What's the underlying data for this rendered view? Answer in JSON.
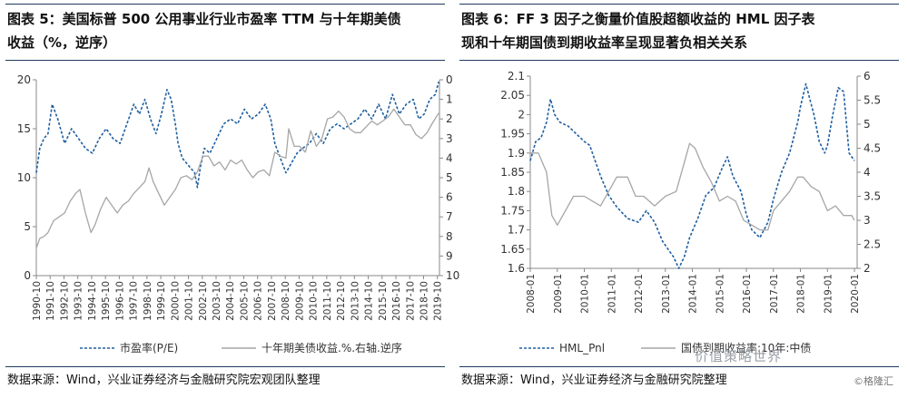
{
  "left": {
    "title_line1": "图表 5：美国标普 500 公用事业行业市盈率 TTM 与十年期美债",
    "title_line2": "收益（%，逆序）",
    "source": "数据来源：Wind，兴业证券经济与金融研究院宏观团队整理"
  },
  "right": {
    "title_line1": "图表 6：FF 3 因子之衡量价值股超额收益的 HML 因子表",
    "title_line2": "现和十年期国债到期收益率呈现显著负相关关系",
    "source": "数据来源：Wind，兴业证券经济与金融研究院整理",
    "watermark": "价值策略世界",
    "watermark2": "©格隆汇"
  },
  "colors": {
    "blue": "#1f5fa0",
    "gray": "#a6a6a6",
    "rule": "#1f3b5f"
  },
  "chart_data": [
    {
      "type": "line",
      "x": [
        "1990-10",
        "1991-10",
        "1992-10",
        "1993-10",
        "1994-10",
        "1995-10",
        "1996-10",
        "1997-10",
        "1998-10",
        "1999-10",
        "2000-10",
        "2001-10",
        "2002-10",
        "2003-10",
        "2004-10",
        "2005-10",
        "2006-10",
        "2007-10",
        "2008-10",
        "2009-10",
        "2010-10",
        "2011-10",
        "2012-10",
        "2013-10",
        "2014-10",
        "2015-10",
        "2016-10",
        "2017-10",
        "2018-10",
        "2019-10"
      ],
      "xlim": [
        1990.75,
        2019.9
      ],
      "ylim_left": [
        0,
        20
      ],
      "ylim_right": [
        0,
        10
      ],
      "yticks_left": [
        "0",
        "5",
        "10",
        "15",
        "20"
      ],
      "yticks_right": [
        "0",
        "1",
        "2",
        "3",
        "4",
        "5",
        "6",
        "7",
        "8",
        "9",
        "10"
      ],
      "right_axis_inverted": true,
      "series": [
        {
          "name": "市盈率(P/E)",
          "axis": "left",
          "style": "dashed",
          "x": [
            1990.75,
            1991.0,
            1991.3,
            1991.6,
            1991.9,
            1992.3,
            1992.8,
            1993.3,
            1993.8,
            1994.3,
            1994.8,
            1995.3,
            1995.8,
            1996.3,
            1996.8,
            1997.3,
            1997.8,
            1998.2,
            1998.6,
            1999.0,
            1999.4,
            1999.8,
            2000.2,
            2000.5,
            2000.8,
            2001.0,
            2001.3,
            2001.6,
            2001.9,
            2002.2,
            2002.4,
            2002.6,
            2002.9,
            2003.3,
            2003.8,
            2004.3,
            2004.8,
            2005.3,
            2005.8,
            2006.3,
            2006.8,
            2007.3,
            2007.7,
            2008.0,
            2008.4,
            2008.8,
            2009.2,
            2009.6,
            2010.0,
            2010.5,
            2011.0,
            2011.5,
            2012.0,
            2012.5,
            2013.0,
            2013.5,
            2014.0,
            2014.5,
            2015.0,
            2015.5,
            2016.0,
            2016.5,
            2017.0,
            2017.5,
            2018.0,
            2018.4,
            2018.8,
            2019.2,
            2019.6,
            2019.85
          ],
          "y": [
            10.5,
            13.0,
            14.0,
            14.5,
            17.5,
            16.0,
            13.5,
            15.0,
            14.0,
            13.0,
            12.5,
            14.0,
            15.0,
            14.0,
            13.5,
            15.5,
            17.5,
            16.5,
            18.0,
            16.0,
            14.5,
            16.5,
            19.0,
            18.0,
            15.5,
            13.5,
            12.0,
            11.5,
            11.0,
            10.5,
            9.0,
            11.0,
            13.0,
            12.5,
            14.0,
            15.5,
            16.0,
            15.5,
            17.0,
            16.0,
            16.5,
            17.5,
            16.0,
            13.5,
            12.0,
            10.5,
            11.5,
            12.5,
            13.0,
            13.5,
            14.5,
            13.5,
            15.0,
            15.5,
            15.0,
            15.5,
            16.0,
            17.0,
            16.0,
            17.5,
            16.0,
            18.5,
            16.5,
            17.5,
            18.0,
            16.0,
            16.5,
            18.0,
            18.5,
            19.8
          ]
        },
        {
          "name": "十年期美债收益.%.右轴.逆序",
          "axis": "right",
          "style": "solid",
          "x": [
            1990.75,
            1991.0,
            1991.3,
            1991.6,
            1992.0,
            1992.4,
            1992.8,
            1993.2,
            1993.6,
            1993.9,
            1994.3,
            1994.7,
            1995.0,
            1995.4,
            1995.8,
            1996.2,
            1996.6,
            1997.0,
            1997.4,
            1997.8,
            1998.2,
            1998.6,
            1998.9,
            1999.2,
            1999.6,
            2000.0,
            2000.4,
            2000.8,
            2001.2,
            2001.6,
            2002.0,
            2002.4,
            2002.8,
            2003.2,
            2003.6,
            2004.0,
            2004.4,
            2004.8,
            2005.2,
            2005.6,
            2006.0,
            2006.4,
            2006.8,
            2007.2,
            2007.6,
            2008.0,
            2008.4,
            2008.8,
            2009.0,
            2009.4,
            2009.8,
            2010.2,
            2010.6,
            2011.0,
            2011.4,
            2011.8,
            2012.2,
            2012.6,
            2013.0,
            2013.4,
            2013.8,
            2014.2,
            2014.6,
            2015.0,
            2015.4,
            2015.8,
            2016.2,
            2016.6,
            2017.0,
            2017.4,
            2017.8,
            2018.2,
            2018.6,
            2019.0,
            2019.4,
            2019.85
          ],
          "y": [
            8.6,
            8.1,
            8.0,
            7.8,
            7.2,
            7.0,
            6.8,
            6.2,
            5.8,
            5.6,
            6.8,
            7.8,
            7.4,
            6.6,
            6.0,
            6.4,
            6.8,
            6.4,
            6.2,
            5.8,
            5.5,
            5.2,
            4.5,
            5.2,
            5.8,
            6.4,
            6.0,
            5.6,
            5.0,
            4.9,
            5.1,
            4.7,
            3.9,
            3.9,
            4.4,
            4.2,
            4.6,
            4.1,
            4.3,
            4.1,
            4.6,
            5.0,
            4.7,
            4.6,
            4.9,
            3.7,
            3.9,
            4.0,
            2.5,
            3.4,
            3.4,
            3.7,
            2.6,
            3.4,
            3.0,
            2.0,
            1.9,
            1.6,
            1.9,
            2.5,
            2.7,
            2.7,
            2.4,
            2.1,
            2.3,
            2.1,
            1.9,
            1.5,
            1.9,
            2.3,
            2.3,
            2.8,
            3.0,
            2.7,
            2.2,
            1.7
          ]
        }
      ]
    },
    {
      "type": "line",
      "x": [
        "2008-01",
        "2009-01",
        "2010-01",
        "2011-01",
        "2012-01",
        "2013-01",
        "2014-01",
        "2015-01",
        "2016-01",
        "2017-01",
        "2018-01",
        "2019-01",
        "2020-01"
      ],
      "xlim": [
        2008.0,
        2020.1
      ],
      "ylim_left": [
        1.6,
        2.1
      ],
      "ylim_right": [
        2,
        6
      ],
      "yticks_left": [
        "1.6",
        "1.65",
        "1.7",
        "1.75",
        "1.8",
        "1.85",
        "1.9",
        "1.95",
        "2",
        "2.05",
        "2.1"
      ],
      "yticks_right": [
        "2",
        "2.5",
        "3",
        "3.5",
        "4",
        "4.5",
        "5",
        "5.5",
        "6"
      ],
      "series": [
        {
          "name": "HML_Pnl",
          "axis": "left",
          "style": "dashed",
          "x": [
            2008.0,
            2008.2,
            2008.4,
            2008.6,
            2008.75,
            2008.9,
            2009.1,
            2009.4,
            2009.7,
            2010.0,
            2010.2,
            2010.4,
            2010.6,
            2010.9,
            2011.2,
            2011.6,
            2012.0,
            2012.3,
            2012.6,
            2012.9,
            2013.1,
            2013.3,
            2013.5,
            2013.7,
            2013.9,
            2014.2,
            2014.5,
            2014.8,
            2015.1,
            2015.3,
            2015.5,
            2015.8,
            2016.0,
            2016.2,
            2016.5,
            2016.8,
            2017.0,
            2017.3,
            2017.6,
            2017.9,
            2018.0,
            2018.2,
            2018.5,
            2018.7,
            2018.9,
            2019.0,
            2019.2,
            2019.4,
            2019.6,
            2019.8,
            2020.0
          ],
          "y": [
            1.88,
            1.93,
            1.94,
            1.98,
            2.04,
            2.0,
            1.98,
            1.97,
            1.95,
            1.93,
            1.92,
            1.88,
            1.84,
            1.79,
            1.76,
            1.73,
            1.72,
            1.75,
            1.72,
            1.67,
            1.65,
            1.63,
            1.6,
            1.63,
            1.68,
            1.73,
            1.79,
            1.81,
            1.86,
            1.89,
            1.84,
            1.8,
            1.74,
            1.7,
            1.68,
            1.72,
            1.78,
            1.85,
            1.9,
            1.98,
            2.02,
            2.08,
            2.0,
            1.93,
            1.9,
            1.92,
            2.0,
            2.07,
            2.06,
            1.9,
            1.88
          ]
        },
        {
          "name": "国债到期收益率:10年:中债",
          "axis": "right",
          "style": "solid",
          "x": [
            2008.0,
            2008.3,
            2008.6,
            2008.8,
            2009.0,
            2009.3,
            2009.6,
            2010.0,
            2010.3,
            2010.6,
            2010.9,
            2011.2,
            2011.6,
            2011.9,
            2012.2,
            2012.6,
            2013.0,
            2013.4,
            2013.7,
            2013.9,
            2014.1,
            2014.4,
            2014.7,
            2015.0,
            2015.3,
            2015.6,
            2015.9,
            2016.2,
            2016.5,
            2016.8,
            2017.0,
            2017.3,
            2017.6,
            2017.9,
            2018.1,
            2018.4,
            2018.7,
            2019.0,
            2019.3,
            2019.6,
            2019.9,
            2020.0
          ],
          "y": [
            4.4,
            4.4,
            4.0,
            3.1,
            2.9,
            3.2,
            3.5,
            3.5,
            3.4,
            3.3,
            3.6,
            3.9,
            3.9,
            3.5,
            3.5,
            3.3,
            3.5,
            3.6,
            4.2,
            4.6,
            4.5,
            4.1,
            3.8,
            3.4,
            3.5,
            3.4,
            3.0,
            2.9,
            2.8,
            2.8,
            3.2,
            3.4,
            3.6,
            3.9,
            3.9,
            3.7,
            3.6,
            3.2,
            3.3,
            3.1,
            3.1,
            3.0
          ]
        }
      ]
    }
  ]
}
